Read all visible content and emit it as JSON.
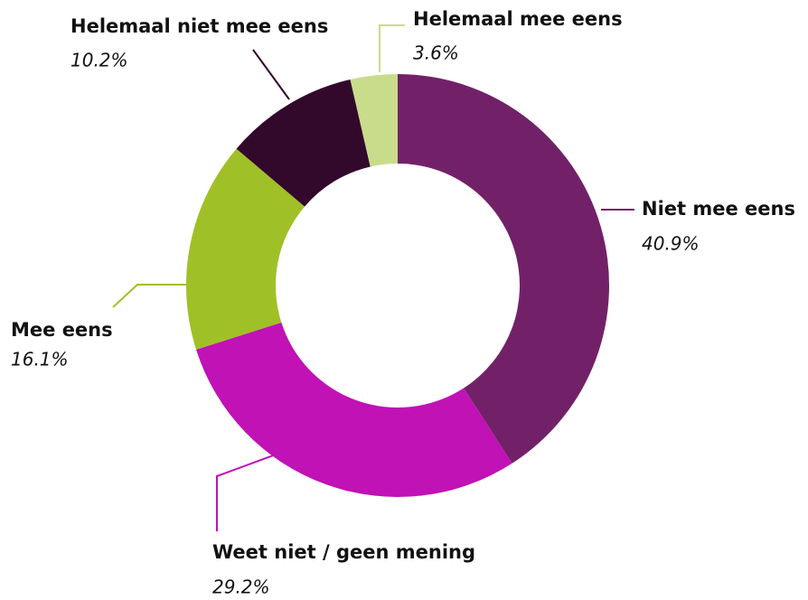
{
  "chart_data": {
    "type": "donut",
    "categories": [
      "Niet mee eens",
      "Weet niet / geen mening",
      "Mee eens",
      "Helemaal niet mee eens",
      "Helemaal mee eens"
    ],
    "values": [
      40.9,
      29.2,
      16.1,
      10.2,
      3.6
    ],
    "value_labels": [
      "40.9%",
      "29.2%",
      "16.1%",
      "10.2%",
      "3.6%"
    ],
    "colors": [
      "#722169",
      "#c012b5",
      "#a0c027",
      "#33092b",
      "#c9dc8b"
    ]
  }
}
